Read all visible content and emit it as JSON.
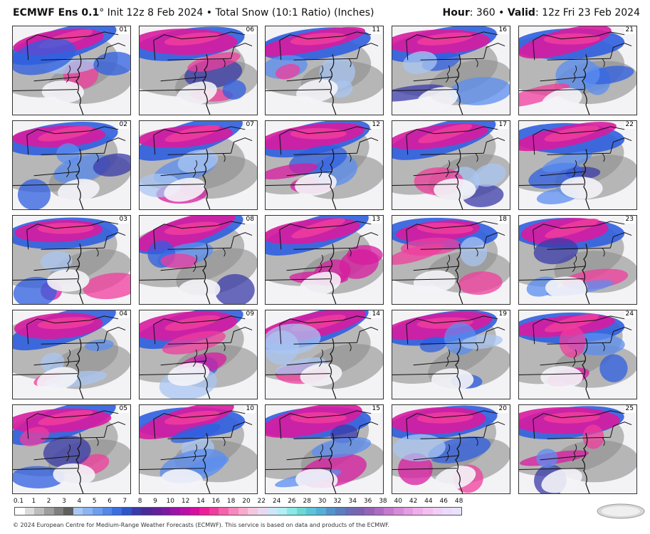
{
  "header": {
    "model": "ECMWF Ens 0.1",
    "degree": "°",
    "init": " Init 12z 8 Feb 2024 • Total Snow (10:1 Ratio) (Inches)",
    "hour_label": "Hour",
    "hour_value": ": 360 • ",
    "valid_label": "Valid",
    "valid_value": ": 12z Fri 23 Feb 2024"
  },
  "members": [
    "01",
    "02",
    "03",
    "04",
    "05",
    "06",
    "07",
    "08",
    "09",
    "10",
    "11",
    "12",
    "13",
    "14",
    "15",
    "16",
    "17",
    "18",
    "19",
    "20",
    "21",
    "22",
    "23",
    "24",
    "25"
  ],
  "legend": {
    "labels": [
      "0.1",
      "1",
      "2",
      "3",
      "4",
      "5",
      "6",
      "7",
      "8",
      "9",
      "10",
      "12",
      "14",
      "16",
      "18",
      "20",
      "22",
      "24",
      "26",
      "28",
      "30",
      "32",
      "34",
      "36",
      "38",
      "40",
      "42",
      "44",
      "46",
      "48"
    ],
    "colors": [
      "#ffffff",
      "#dcdcdc",
      "#bdbdbd",
      "#9e9e9e",
      "#7f7f7f",
      "#5f5f5f",
      "#a8c8f0",
      "#8cb4f0",
      "#6f9eee",
      "#5588e8",
      "#3b6fe0",
      "#2f55c8",
      "#3a3aa8",
      "#4a2a98",
      "#62209a",
      "#7a1aa0",
      "#9a14a8",
      "#b810a8",
      "#d60fa2",
      "#ec1e9a",
      "#f03c9c",
      "#f462ac",
      "#f688bc",
      "#f8aacb",
      "#f3c8de",
      "#e8d8f0",
      "#cfe6f6",
      "#b2eef4",
      "#8ae8e6",
      "#6cd8d6",
      "#5cc4d8",
      "#55aed6",
      "#5592cc",
      "#5a7ec0",
      "#6a6cb6",
      "#7e62b2",
      "#9564b8",
      "#ad6cc2",
      "#c47ace",
      "#d78ad8",
      "#e49ce2",
      "#eeaeea",
      "#f2bff0",
      "#f0cff4",
      "#ecdaf8",
      "#e8e2fa"
    ]
  },
  "footer": "© 2024 European Centre for Medium-Range Weather Forecasts (ECMWF). This service is based on data and products of the ECMWF.",
  "logo_text": "WeatherBELL"
}
